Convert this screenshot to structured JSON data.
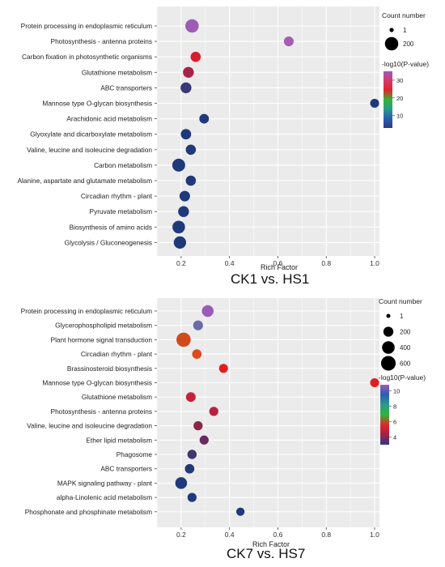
{
  "chart_data": [
    {
      "type": "scatter",
      "title": "CK1 vs. HS1",
      "xlabel": "Rich Factor",
      "ylabel": "",
      "xlim": [
        0.1,
        1.02
      ],
      "xticks": [
        "0.2",
        "0.4",
        "0.6",
        "0.8",
        "1.0"
      ],
      "xtick_values": [
        0.2,
        0.4,
        0.6,
        0.8,
        1.0
      ],
      "grid": true,
      "size_legend": {
        "title": "Count number",
        "entries": [
          "1",
          "200"
        ],
        "values": [
          1,
          200
        ]
      },
      "color_legend": {
        "title": "-log10(P-value)",
        "ticks": [
          "30",
          "20",
          "10"
        ],
        "tick_values": [
          30,
          20,
          10
        ],
        "range": [
          3,
          35
        ],
        "colors": [
          "#2b3a80",
          "#2a5db0",
          "#2c9a8a",
          "#2fb53a",
          "#e0272a",
          "#d63a6a",
          "#9c5ab8"
        ]
      },
      "points": [
        {
          "term": "Protein processing in endoplasmic reticulum",
          "x": 0.245,
          "count": 200,
          "p": 33,
          "color": "#9d5cb6"
        },
        {
          "term": "Photosynthesis - antenna proteins",
          "x": 0.645,
          "count": 80,
          "p": 31,
          "color": "#a55cb4"
        },
        {
          "term": "Carbon fixation in photosynthetic organisms",
          "x": 0.26,
          "count": 90,
          "p": 12,
          "color": "#d81f2e"
        },
        {
          "term": "Glutathione metabolism",
          "x": 0.23,
          "count": 110,
          "p": 9,
          "color": "#a82343"
        },
        {
          "term": "ABC transporters",
          "x": 0.22,
          "count": 110,
          "p": 5,
          "color": "#3a3878"
        },
        {
          "term": "Mannose type O-glycan biosynthesis",
          "x": 1.0,
          "count": 60,
          "p": 3,
          "color": "#1f3a7a"
        },
        {
          "term": "Arachidonic acid metabolism",
          "x": 0.295,
          "count": 75,
          "p": 3,
          "color": "#1f3a7a"
        },
        {
          "term": "Glyoxylate and dicarboxylate metabolism",
          "x": 0.22,
          "count": 95,
          "p": 3,
          "color": "#1f3a7a"
        },
        {
          "term": "Valine, leucine and isoleucine degradation",
          "x": 0.24,
          "count": 90,
          "p": 3,
          "color": "#1f3a7a"
        },
        {
          "term": "Carbon metabolism",
          "x": 0.19,
          "count": 180,
          "p": 3,
          "color": "#1f3a7a"
        },
        {
          "term": "Alanine, aspartate and glutamate metabolism",
          "x": 0.24,
          "count": 90,
          "p": 3,
          "color": "#1f3a7a"
        },
        {
          "term": "Circadian rhythm - plant",
          "x": 0.215,
          "count": 100,
          "p": 3,
          "color": "#1f3a7a"
        },
        {
          "term": "Pyruvate metabolism",
          "x": 0.21,
          "count": 110,
          "p": 3,
          "color": "#1f3a7a"
        },
        {
          "term": "Biosynthesis of amino acids",
          "x": 0.19,
          "count": 170,
          "p": 3,
          "color": "#1f3a7a"
        },
        {
          "term": "Glycolysis / Gluconeogenesis",
          "x": 0.195,
          "count": 160,
          "p": 3,
          "color": "#1f3a7a"
        }
      ]
    },
    {
      "type": "scatter",
      "title": "CK7 vs. HS7",
      "xlabel": "Rich Factor",
      "ylabel": "",
      "xlim": [
        0.1,
        1.02
      ],
      "xticks": [
        "0.2",
        "0.4",
        "0.6",
        "0.8",
        "1.0"
      ],
      "xtick_values": [
        0.2,
        0.4,
        0.6,
        0.8,
        1.0
      ],
      "grid": true,
      "size_legend": {
        "title": "Count number",
        "entries": [
          "1",
          "200",
          "400",
          "600"
        ],
        "values": [
          1,
          200,
          400,
          600
        ]
      },
      "color_legend": {
        "title": "-log10(P-value)",
        "ticks": [
          "10",
          "8",
          "6",
          "4"
        ],
        "tick_values": [
          10,
          8,
          6,
          4
        ],
        "range": [
          3,
          10.8
        ],
        "colors": [
          "#2b3a80",
          "#a02048",
          "#e0272a",
          "#2fb53a",
          "#2c9a8a",
          "#2a5db0",
          "#9c5ab8"
        ]
      },
      "points": [
        {
          "term": "Protein processing in endoplasmic reticulum",
          "x": 0.31,
          "count": 320,
          "p": 10.5,
          "color": "#9c5ab8"
        },
        {
          "term": "Glycerophospholipid metabolism",
          "x": 0.27,
          "count": 190,
          "p": 9.5,
          "color": "#6a6aa8"
        },
        {
          "term": "Plant hormone signal transduction",
          "x": 0.21,
          "count": 560,
          "p": 6.2,
          "color": "#d14a1c"
        },
        {
          "term": "Circadian rhythm - plant",
          "x": 0.265,
          "count": 170,
          "p": 6.3,
          "color": "#dc4a1e"
        },
        {
          "term": "Brassinosteroid biosynthesis",
          "x": 0.375,
          "count": 140,
          "p": 6.1,
          "color": "#e01e1e"
        },
        {
          "term": "Mannose type O-glycan biosynthesis",
          "x": 1.0,
          "count": 140,
          "p": 6.1,
          "color": "#e01e1e"
        },
        {
          "term": "Glutathione metabolism",
          "x": 0.24,
          "count": 180,
          "p": 5.8,
          "color": "#c8203a"
        },
        {
          "term": "Photosynthesis - antenna proteins",
          "x": 0.335,
          "count": 150,
          "p": 5.5,
          "color": "#b82040"
        },
        {
          "term": "Valine, leucine and isoleucine degradation",
          "x": 0.27,
          "count": 150,
          "p": 4.9,
          "color": "#8a2448"
        },
        {
          "term": "Ether lipid metabolism",
          "x": 0.295,
          "count": 150,
          "p": 4.5,
          "color": "#6a2a5e"
        },
        {
          "term": "Phagosome",
          "x": 0.245,
          "count": 160,
          "p": 4.0,
          "color": "#423670"
        },
        {
          "term": "ABC transporters",
          "x": 0.235,
          "count": 170,
          "p": 3.3,
          "color": "#23387a"
        },
        {
          "term": "MAPK signaling pathway - plant",
          "x": 0.2,
          "count": 330,
          "p": 3.2,
          "color": "#1f3a7a"
        },
        {
          "term": "alpha-Linolenic acid metabolism",
          "x": 0.245,
          "count": 150,
          "p": 3.1,
          "color": "#1f3a7a"
        },
        {
          "term": "Phosphonate and phosphinate metabolism",
          "x": 0.445,
          "count": 110,
          "p": 3.0,
          "color": "#1f3a7a"
        }
      ]
    }
  ]
}
